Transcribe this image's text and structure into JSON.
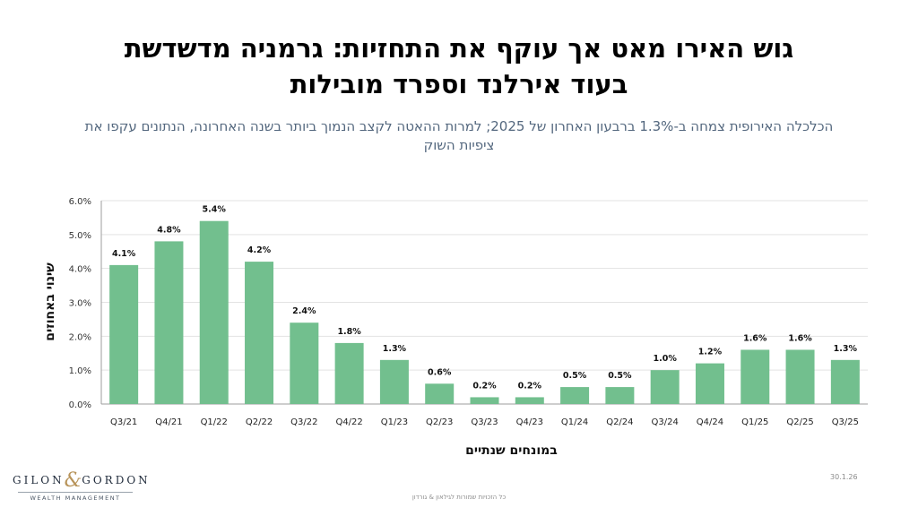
{
  "title_lines": [
    "גוש האירו מאט אך עוקף את התחזיות: גרמניה מדשדשת",
    "בעוד אירלנד וספרד מובילות"
  ],
  "subtitle_lines": [
    "הכלכלה האירופית צמחה ב-1.3% ברבעון האחרון של 2025; למרות ההאטה לקצב הנמוך ביותר בשנה האחרונה, הנתונים עקפו את",
    "ציפיות השוק"
  ],
  "chart_data": {
    "type": "bar",
    "categories": [
      "Q3/21",
      "Q4/21",
      "Q1/22",
      "Q2/22",
      "Q3/22",
      "Q4/22",
      "Q1/23",
      "Q2/23",
      "Q3/23",
      "Q4/23",
      "Q1/24",
      "Q2/24",
      "Q3/24",
      "Q4/24",
      "Q1/25",
      "Q2/25",
      "Q3/25"
    ],
    "values": [
      4.1,
      4.8,
      5.4,
      4.2,
      2.4,
      1.8,
      1.3,
      0.6,
      0.2,
      0.2,
      0.5,
      0.5,
      1.0,
      1.2,
      1.6,
      1.6,
      1.3
    ],
    "value_labels": [
      "4.1%",
      "4.8%",
      "5.4%",
      "4.2%",
      "2.4%",
      "1.8%",
      "1.3%",
      "0.6%",
      "0.2%",
      "0.2%",
      "0.5%",
      "0.5%",
      "1.0%",
      "1.2%",
      "1.6%",
      "1.6%",
      "1.3%"
    ],
    "ylim": [
      0,
      6
    ],
    "yticks": [
      "0.0%",
      "1.0%",
      "2.0%",
      "3.0%",
      "4.0%",
      "5.0%",
      "6.0%"
    ],
    "ylabel": "שינוי באחוזים",
    "xlabel": "במונחים שנתיים",
    "grid": true,
    "bar_color": "#72bf8e"
  },
  "logo": {
    "name_left": "GILON",
    "ampersand": "&",
    "name_right": "GORDON",
    "tagline": "WEALTH MANAGEMENT"
  },
  "date": "30.1.26",
  "footer": "כל הזכויות שמורות לגילאון & גורדון"
}
